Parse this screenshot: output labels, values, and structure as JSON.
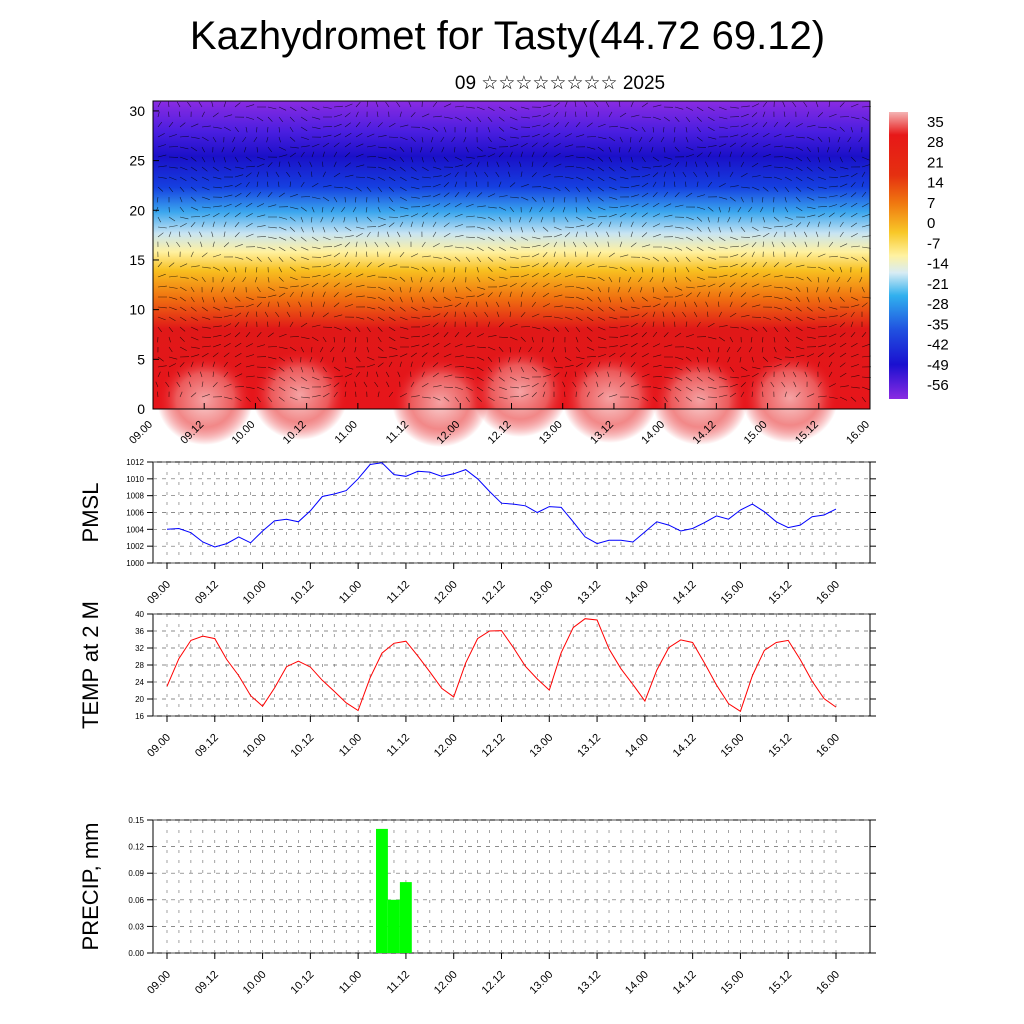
{
  "header": {
    "title": "Kazhydromet for Tasty(44.72 69.12)",
    "subtitle": "09 ☆☆☆☆☆☆☆☆ 2025"
  },
  "colors": {
    "pmsl_line": "#0000ff",
    "temp_line": "#ff0000",
    "precip_bar": "#00ff00",
    "gradient_top": "#8a2be2",
    "gradient_bottom": "#e7151b"
  },
  "chart_data": [
    {
      "type": "heatmap",
      "name_hint": "cross-section",
      "ylim": [
        0,
        31
      ],
      "yticks": [
        "0",
        "5",
        "10",
        "15",
        "20",
        "25",
        "30"
      ],
      "xticks": [
        "09.00",
        "09.12",
        "10.00",
        "10.12",
        "11.00",
        "11.12",
        "12.00",
        "12.12",
        "13.00",
        "13.12",
        "14.00",
        "14.12",
        "15.00",
        "15.12",
        "16.00"
      ],
      "colorbar_labels": [
        "35",
        "28",
        "21",
        "14",
        "7",
        "0",
        "-7",
        "-14",
        "-21",
        "-28",
        "-35",
        "-42",
        "-49",
        "-56"
      ],
      "overlay": "wind vectors"
    },
    {
      "type": "line",
      "ylabel": "PMSL",
      "ylim": [
        1000,
        1012
      ],
      "yticks": [
        "1000",
        "1002",
        "1004",
        "1006",
        "1008",
        "1010",
        "1012"
      ],
      "xticks": [
        "09.00",
        "09.12",
        "10.00",
        "10.12",
        "11.00",
        "11.12",
        "12.00",
        "12.12",
        "13.00",
        "13.12",
        "14.00",
        "14.12",
        "15.00",
        "15.12",
        "16.00"
      ],
      "values": [
        1004.0,
        1004.1,
        1003.6,
        1002.5,
        1001.9,
        1002.3,
        1003.1,
        1002.4,
        1003.8,
        1005.0,
        1005.2,
        1004.9,
        1006.2,
        1007.9,
        1008.2,
        1008.6,
        1010.0,
        1011.7,
        1011.9,
        1010.5,
        1010.3,
        1010.9,
        1010.8,
        1010.3,
        1010.6,
        1011.1,
        1010.0,
        1008.5,
        1007.1,
        1007.0,
        1006.8,
        1006.0,
        1006.7,
        1006.6,
        1004.9,
        1003.1,
        1002.3,
        1002.7,
        1002.7,
        1002.5,
        1003.7,
        1004.9,
        1004.5,
        1003.8,
        1004.1,
        1004.8,
        1005.6,
        1005.2,
        1006.3,
        1007.0,
        1006.1,
        1004.9,
        1004.2,
        1004.5,
        1005.5,
        1005.7,
        1006.4
      ]
    },
    {
      "type": "line",
      "ylabel": "TEMP at 2 M",
      "ylim": [
        16,
        40
      ],
      "yticks": [
        "16",
        "20",
        "24",
        "28",
        "32",
        "36",
        "40"
      ],
      "xticks": [
        "09.00",
        "09.12",
        "10.00",
        "10.12",
        "11.00",
        "11.12",
        "12.00",
        "12.12",
        "13.00",
        "13.12",
        "14.00",
        "14.12",
        "15.00",
        "15.12",
        "16.00"
      ],
      "values": [
        23,
        29.5,
        33.8,
        34.8,
        34.2,
        29.3,
        25.5,
        20.8,
        18.3,
        22.6,
        27.6,
        28.9,
        27.5,
        24.4,
        21.8,
        19.1,
        17.3,
        25.0,
        30.8,
        33.1,
        33.6,
        30.1,
        26.4,
        22.5,
        20.5,
        28.5,
        34.2,
        36.0,
        36.1,
        32.1,
        27.7,
        24.7,
        22.1,
        30.9,
        36.8,
        38.9,
        38.6,
        31.8,
        27.1,
        23.4,
        19.5,
        26.8,
        32.1,
        33.9,
        33.3,
        28.4,
        23.3,
        18.9,
        17.1,
        25.5,
        31.4,
        33.3,
        33.8,
        29.3,
        24.2,
        20.1,
        18.1
      ]
    },
    {
      "type": "bar",
      "ylabel": "PRECIP, mm",
      "ylim": [
        0,
        0.15
      ],
      "yticks": [
        "0.00",
        "0.03",
        "0.06",
        "0.09",
        "0.12",
        "0.15"
      ],
      "xticks": [
        "09.00",
        "09.12",
        "10.00",
        "10.12",
        "11.00",
        "11.12",
        "12.00",
        "12.12",
        "13.00",
        "13.12",
        "14.00",
        "14.12",
        "15.00",
        "15.12",
        "16.00"
      ],
      "bars": [
        {
          "x": 18,
          "value": 0.14
        },
        {
          "x": 19,
          "value": 0.06
        },
        {
          "x": 20,
          "value": 0.08
        }
      ]
    }
  ]
}
